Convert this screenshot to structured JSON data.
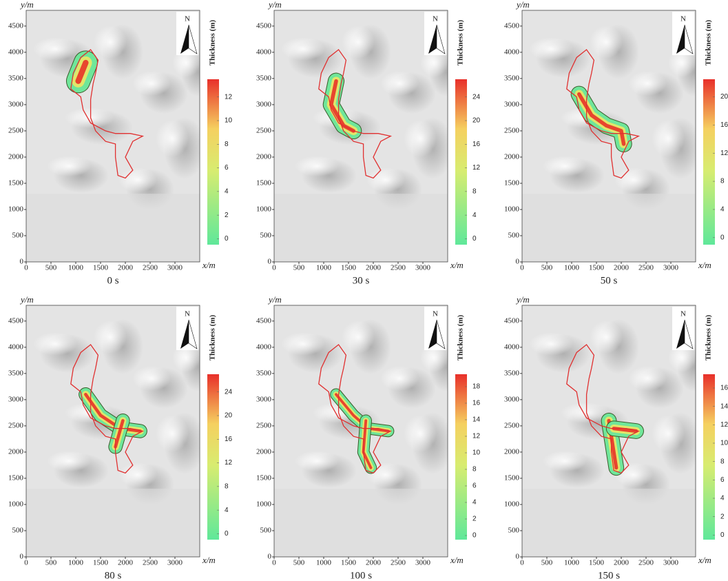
{
  "chart_data": [
    {
      "type": "map",
      "title": "0 s",
      "xlabel": "x/m",
      "ylabel": "y/m",
      "xlim": [
        0,
        3500
      ],
      "ylim": [
        0,
        4800
      ],
      "xticks": [
        0,
        500,
        1000,
        1500,
        2000,
        2500,
        3000
      ],
      "yticks": [
        0,
        500,
        1000,
        1500,
        2000,
        2500,
        3000,
        3500,
        4000,
        4500
      ],
      "north_label": "N",
      "colorbar_label": "Thickness (m)",
      "colorbar_lim": [
        -0.5,
        13.5
      ],
      "colorbar_ticks": [
        0,
        2,
        4,
        6,
        8,
        10,
        12
      ]
    },
    {
      "type": "map",
      "title": "30 s",
      "xlabel": "x/m",
      "ylabel": "y/m",
      "xlim": [
        0,
        3500
      ],
      "ylim": [
        0,
        4800
      ],
      "xticks": [
        0,
        500,
        1000,
        1500,
        2000,
        2500,
        3000
      ],
      "yticks": [
        0,
        500,
        1000,
        1500,
        2000,
        2500,
        3000,
        3500,
        4000,
        4500
      ],
      "north_label": "N",
      "colorbar_label": "Thickness (m)",
      "colorbar_lim": [
        -1,
        27
      ],
      "colorbar_ticks": [
        0,
        4,
        8,
        12,
        16,
        20,
        24
      ]
    },
    {
      "type": "map",
      "title": "50 s",
      "xlabel": "x/m",
      "ylabel": "y/m",
      "xlim": [
        0,
        3500
      ],
      "ylim": [
        0,
        4800
      ],
      "xticks": [
        0,
        500,
        1000,
        1500,
        2000,
        2500,
        3000
      ],
      "yticks": [
        0,
        500,
        1000,
        1500,
        2000,
        2500,
        3000,
        3500,
        4000,
        4500
      ],
      "north_label": "N",
      "colorbar_label": "Thickness (m)",
      "colorbar_lim": [
        -1,
        22.5
      ],
      "colorbar_ticks": [
        0,
        4,
        8,
        12,
        16,
        20
      ]
    },
    {
      "type": "map",
      "title": "80 s",
      "xlabel": "x/m",
      "ylabel": "y/m",
      "xlim": [
        0,
        3500
      ],
      "ylim": [
        0,
        4800
      ],
      "xticks": [
        0,
        500,
        1000,
        1500,
        2000,
        2500,
        3000
      ],
      "yticks": [
        0,
        500,
        1000,
        1500,
        2000,
        2500,
        3000,
        3500,
        4000,
        4500
      ],
      "north_label": "N",
      "colorbar_label": "Thickness (m)",
      "colorbar_lim": [
        -1,
        27
      ],
      "colorbar_ticks": [
        0,
        4,
        8,
        12,
        16,
        20,
        24
      ]
    },
    {
      "type": "map",
      "title": "100 s",
      "xlabel": "x/m",
      "ylabel": "y/m",
      "xlim": [
        0,
        3500
      ],
      "ylim": [
        0,
        4800
      ],
      "xticks": [
        0,
        500,
        1000,
        1500,
        2000,
        2500,
        3000
      ],
      "yticks": [
        0,
        500,
        1000,
        1500,
        2000,
        2500,
        3000,
        3500,
        4000,
        4500
      ],
      "north_label": "N",
      "colorbar_label": "Thickness (m)",
      "colorbar_lim": [
        -0.5,
        19.5
      ],
      "colorbar_ticks": [
        0,
        2,
        4,
        6,
        8,
        10,
        12,
        14,
        16,
        18
      ]
    },
    {
      "type": "map",
      "title": "150 s",
      "xlabel": "x/m",
      "ylabel": "y/m",
      "xlim": [
        0,
        3500
      ],
      "ylim": [
        0,
        4800
      ],
      "xticks": [
        0,
        500,
        1000,
        1500,
        2000,
        2500,
        3000
      ],
      "yticks": [
        0,
        500,
        1000,
        1500,
        2000,
        2500,
        3000,
        3500,
        4000,
        4500
      ],
      "north_label": "N",
      "colorbar_label": "Thickness (m)",
      "colorbar_lim": [
        -0.5,
        17.5
      ],
      "colorbar_ticks": [
        0,
        2,
        4,
        6,
        8,
        10,
        12,
        14,
        16
      ]
    }
  ]
}
